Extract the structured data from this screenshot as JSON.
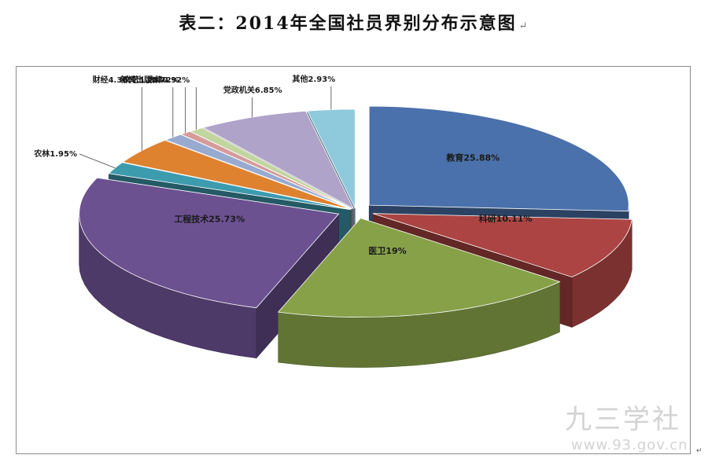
{
  "page": {
    "title": "表二：2014年全国社员界别分布示意图",
    "return_mark": "↵"
  },
  "watermark": {
    "text": "九三学社",
    "url": "www.93.gov.cn"
  },
  "corner_mark": "↵",
  "chart_data": {
    "type": "pie",
    "style": "3d-exploded",
    "start_angle_deg": 0,
    "direction": "clockwise",
    "slices": [
      {
        "label": "教育",
        "value": 25.88,
        "value_text": "25.88%",
        "color": "#4a71ab",
        "label_position": "inside"
      },
      {
        "label": "科研",
        "value": 10.11,
        "value_text": "10.11%",
        "color": "#ab4442",
        "label_position": "inside"
      },
      {
        "label": "医卫",
        "value": 19,
        "value_text": "19%",
        "color": "#87a148",
        "label_position": "inside"
      },
      {
        "label": "工程技术",
        "value": 25.73,
        "value_text": "25.73%",
        "color": "#6c5191",
        "label_position": "inside"
      },
      {
        "label": "农林",
        "value": 1.95,
        "value_text": "1.95%",
        "color": "#3d9bae",
        "label_position": "outside"
      },
      {
        "label": "财经",
        "value": 4.36,
        "value_text": "4.36%",
        "color": "#de8230",
        "label_position": "outside"
      },
      {
        "label": "文艺",
        "value": 1.28,
        "value_text": "1.28%",
        "color": "#99aad0",
        "label_position": "outside"
      },
      {
        "label": "新闻出版",
        "value": 0.72,
        "value_text": "0.72%",
        "color": "#d59b9b",
        "label_position": "outside"
      },
      {
        "label": "法律",
        "value": 0.92,
        "value_text": "0.92%",
        "color": "#c1d59e",
        "label_position": "outside"
      },
      {
        "label": "党政机关",
        "value": 6.85,
        "value_text": "6.85%",
        "color": "#afa3c9",
        "label_position": "outside"
      },
      {
        "label": "其他",
        "value": 2.93,
        "value_text": "2.93%",
        "color": "#8fc9dc",
        "label_position": "outside"
      }
    ]
  }
}
